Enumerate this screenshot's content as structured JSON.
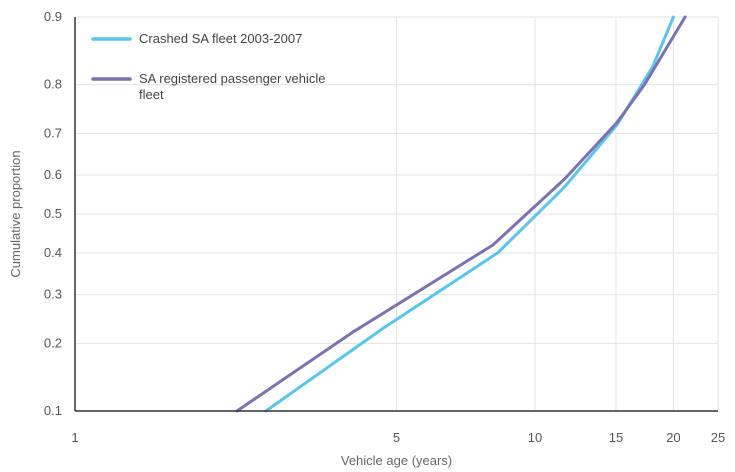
{
  "chart_data": {
    "type": "line",
    "title": "",
    "xlabel": "Vehicle age (years)",
    "ylabel": "Cumulative proportion",
    "x_scale": "log",
    "y_scale": "probit",
    "xlim": [
      1,
      25
    ],
    "ylim": [
      0.1,
      0.9
    ],
    "x_ticks": [
      1,
      5,
      10,
      15,
      20,
      25
    ],
    "y_ticks": [
      0.1,
      0.2,
      0.3,
      0.4,
      0.5,
      0.6,
      0.7,
      0.8,
      0.9
    ],
    "grid": true,
    "legend_position": "top-left",
    "series": [
      {
        "name": "Crashed SA fleet 2003-2007",
        "color": "#5bc4ea",
        "x": [
          2.6,
          4.7,
          8.3,
          11.6,
          15.1,
          18.0,
          20.0
        ],
        "y": [
          0.1,
          0.23,
          0.4,
          0.57,
          0.72,
          0.83,
          0.9
        ]
      },
      {
        "name": "SA registered passenger vehicle fleet",
        "name_lines": [
          "SA registered passenger vehicle",
          "fleet"
        ],
        "color": "#7b72b0",
        "x": [
          2.25,
          4.0,
          8.1,
          11.6,
          15.1,
          17.3,
          21.2
        ],
        "y": [
          0.1,
          0.22,
          0.42,
          0.59,
          0.725,
          0.8,
          0.9
        ]
      }
    ]
  }
}
